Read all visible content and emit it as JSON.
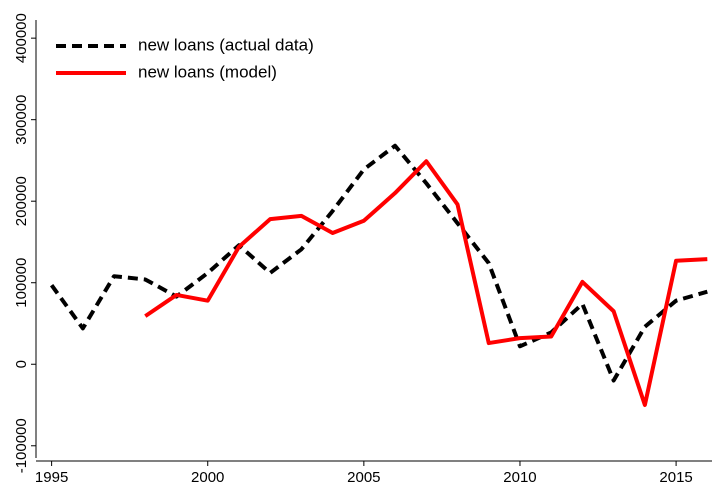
{
  "chart_data": {
    "type": "line",
    "x": [
      1995,
      1996,
      1997,
      1998,
      1999,
      2000,
      2001,
      2002,
      2003,
      2004,
      2005,
      2006,
      2007,
      2008,
      2009,
      2010,
      2011,
      2012,
      2013,
      2014,
      2015,
      2016
    ],
    "series": [
      {
        "name": "new loans (actual data)",
        "color": "#000000",
        "dash": true,
        "values": [
          97000,
          44000,
          108000,
          104000,
          83000,
          112000,
          146000,
          112000,
          141000,
          188000,
          239000,
          268000,
          222000,
          173000,
          124000,
          22000,
          39000,
          74000,
          -20000,
          46000,
          78000,
          89000
        ]
      },
      {
        "name": "new loans (model)",
        "color": "#ff0000",
        "dash": false,
        "values": [
          null,
          null,
          null,
          59000,
          85000,
          78000,
          144000,
          178000,
          182000,
          161000,
          176000,
          210000,
          249000,
          196000,
          26000,
          32000,
          34000,
          101000,
          65000,
          -50000,
          127000,
          129000
        ]
      }
    ],
    "xlim": [
      1994.5,
      2016.15
    ],
    "xticks": [
      1995,
      2000,
      2005,
      2010,
      2015
    ],
    "ylim": [
      -115000,
      410000
    ],
    "yticks": [
      -100000,
      0,
      100000,
      200000,
      300000,
      400000
    ],
    "grid": false,
    "legend": "top-left"
  }
}
